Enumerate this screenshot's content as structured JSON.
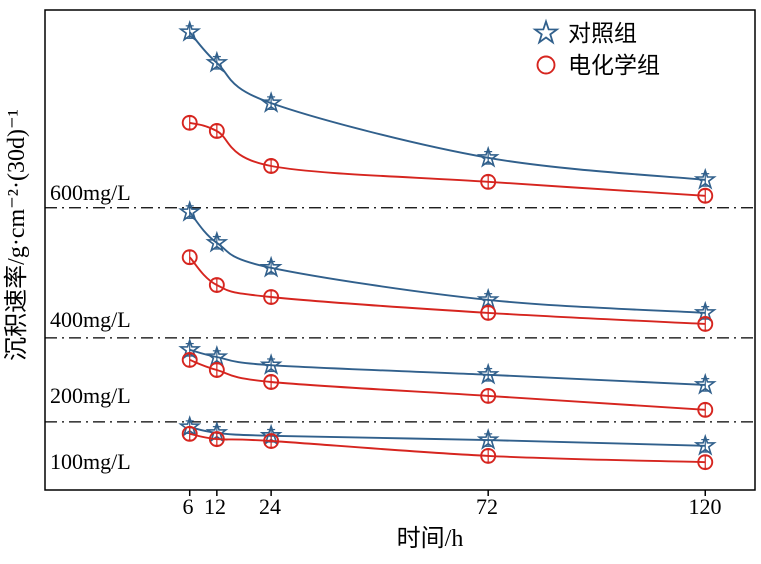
{
  "chart_data": {
    "type": "line",
    "title": "",
    "xlabel": "时间/h",
    "ylabel": "沉积速率/g·cm⁻²·(30d)⁻¹",
    "x": [
      6,
      12,
      24,
      72,
      120
    ],
    "x_tick_labels": [
      "6",
      "12",
      "24",
      "72",
      "120"
    ],
    "xlim": [
      -26,
      131
    ],
    "ylim": [
      0,
      100
    ],
    "y_axis_note": "no numeric y ticks shown; values are relative units estimated from plot",
    "grid": false,
    "legend_position": "upper right",
    "errorbar": 1.3,
    "marker_outline_only": true,
    "refline_style": "dash-dot horizontal reference lines",
    "series_styles": [
      {
        "name": "对照组",
        "marker": "star",
        "color": "#31608c"
      },
      {
        "name": "电化学组",
        "marker": "circle",
        "color": "#d6251f"
      }
    ],
    "groups": [
      {
        "label": "600mg/L",
        "refline": 58.8,
        "series": [
          {
            "name": "对照组",
            "values": [
              95.4,
              89.0,
              80.6,
              69.2,
              64.6
            ]
          },
          {
            "name": "电化学组",
            "values": [
              76.5,
              74.8,
              67.5,
              64.2,
              61.3
            ]
          }
        ]
      },
      {
        "label": "400mg/L",
        "refline": 31.7,
        "series": [
          {
            "name": "对照组",
            "values": [
              57.9,
              51.5,
              46.3,
              39.6,
              36.9
            ]
          },
          {
            "name": "电化学组",
            "values": [
              48.5,
              42.7,
              40.2,
              36.9,
              34.6
            ]
          }
        ]
      },
      {
        "label": "200mg/L",
        "refline": 14.2,
        "series": [
          {
            "name": "对照组",
            "values": [
              29.2,
              27.7,
              26.0,
              24.0,
              21.9
            ]
          },
          {
            "name": "电化学组",
            "values": [
              27.1,
              25.0,
              22.5,
              19.6,
              16.7
            ]
          }
        ]
      },
      {
        "label": "100mg/L",
        "refline": null,
        "series": [
          {
            "name": "对照组",
            "values": [
              13.1,
              11.9,
              11.3,
              10.4,
              9.2
            ]
          },
          {
            "name": "电化学组",
            "values": [
              11.7,
              10.6,
              10.2,
              7.1,
              5.8
            ]
          }
        ]
      }
    ]
  }
}
